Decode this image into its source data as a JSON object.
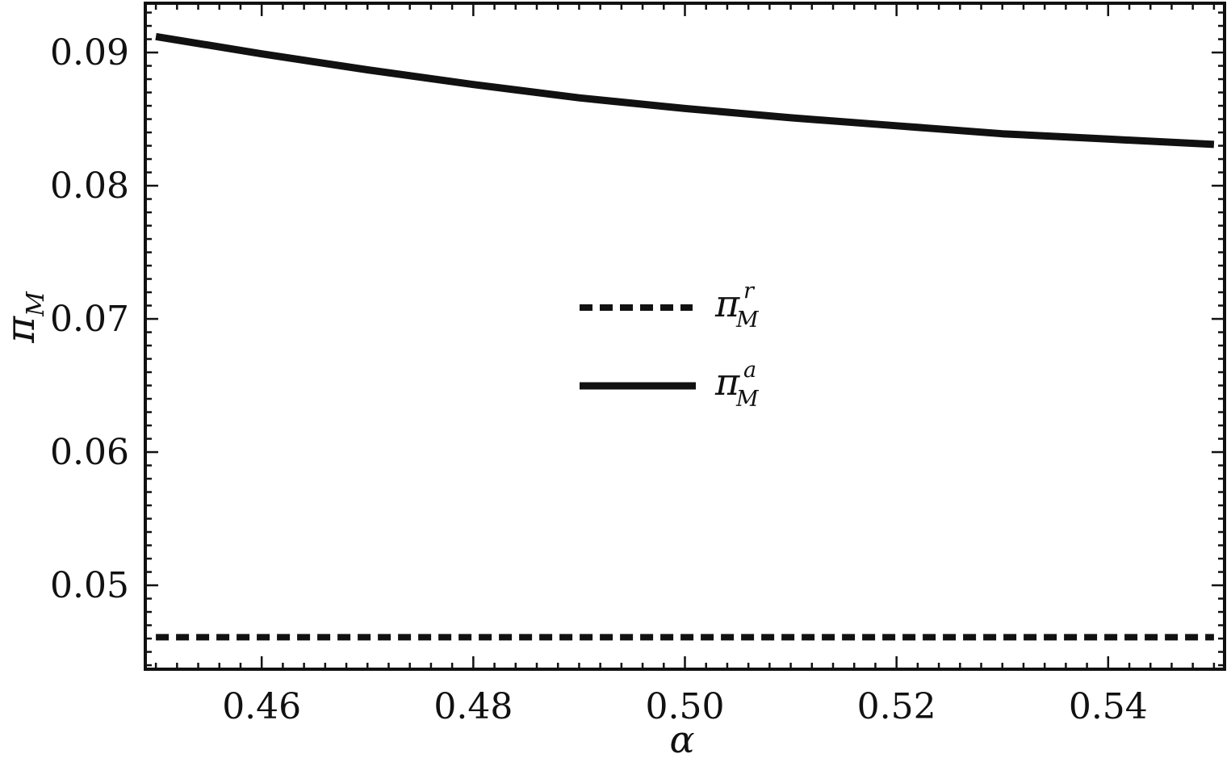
{
  "chart_data": {
    "type": "line",
    "xlabel": "α",
    "ylabel_main": "π",
    "ylabel_sub": "M",
    "xlim": [
      0.449,
      0.551
    ],
    "ylim": [
      0.0437,
      0.0937
    ],
    "xticks": [
      0.46,
      0.48,
      0.5,
      0.52,
      0.54
    ],
    "xtick_labels": [
      "0.46",
      "0.48",
      "0.50",
      "0.52",
      "0.54"
    ],
    "yticks": [
      0.05,
      0.06,
      0.07,
      0.08,
      0.09
    ],
    "ytick_labels": [
      "0.05",
      "0.06",
      "0.07",
      "0.08",
      "0.09"
    ],
    "grid": false,
    "legend_position": "center",
    "series": [
      {
        "name_main": "π",
        "name_sub": "M",
        "name_sup": "r",
        "style": "dashed",
        "color": "#111111",
        "x": [
          0.45,
          0.55
        ],
        "y": [
          0.0461,
          0.0461
        ]
      },
      {
        "name_main": "π",
        "name_sub": "M",
        "name_sup": "a",
        "style": "solid",
        "color": "#111111",
        "x": [
          0.45,
          0.46,
          0.47,
          0.48,
          0.49,
          0.5,
          0.51,
          0.52,
          0.53,
          0.54,
          0.55
        ],
        "y": [
          0.0912,
          0.0899,
          0.0887,
          0.0876,
          0.0866,
          0.0858,
          0.0851,
          0.0845,
          0.0839,
          0.0835,
          0.0831
        ]
      }
    ]
  }
}
